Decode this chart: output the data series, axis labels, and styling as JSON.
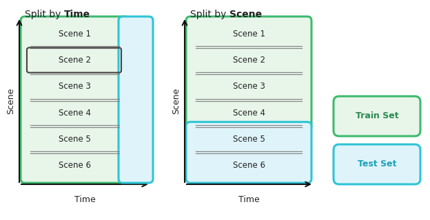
{
  "title_left_normal": "Split by ",
  "title_left_bold": "Time",
  "title_right_normal": "Split by ",
  "title_right_bold": "Scene",
  "scenes": [
    "Scene 1",
    "Scene 2",
    "Scene 3",
    "Scene 4",
    "Scene 5",
    "Scene 6"
  ],
  "train_fill": "#e8f5e9",
  "train_border": "#3dba6e",
  "test_fill": "#dff4fa",
  "test_border": "#2ec4d6",
  "scene2_border": "#444444",
  "axis_color": "#111111",
  "text_color": "#222222",
  "sep_line_color": "#888888",
  "bg_color": "#ffffff",
  "legend_train_label": "Train Set",
  "legend_test_label": "Test Set",
  "legend_train_text": "#2a8a50",
  "legend_test_text": "#1aa0b8"
}
